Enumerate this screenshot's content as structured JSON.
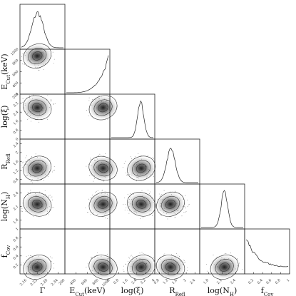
{
  "chart_data": {
    "type": "corner",
    "params": [
      {
        "key": "gamma",
        "label": "Γ",
        "range": [
          2.12,
          2.38
        ],
        "ticks": [
          2.16,
          2.22,
          2.28,
          2.34
        ],
        "peak": 2.22,
        "sigma": 0.035
      },
      {
        "key": "ecut",
        "label": "E_Cut (keV)",
        "range": [
          200,
          1000
        ],
        "ticks": [
          200,
          400,
          600,
          800,
          1000
        ],
        "peak": 1000,
        "sigma": 120
      },
      {
        "key": "logxi",
        "label": "log(ξ)",
        "range": [
          0,
          4
        ],
        "ticks": [
          0,
          0.8,
          1.6,
          2.4,
          3.2,
          4
        ],
        "peak": 2.8,
        "sigma": 0.3
      },
      {
        "key": "rrefl",
        "label": "R_Refl",
        "range": [
          0.6,
          2.6
        ],
        "ticks": [
          0.8,
          1.2,
          1.6,
          2.0,
          2.4
        ],
        "peak": 1.3,
        "sigma": 0.2
      },
      {
        "key": "lognh",
        "label": "log(N_H)",
        "range": [
          1.6,
          2.6
        ],
        "ticks": [
          1.8,
          2.1,
          2.4
        ],
        "peak": 2.15,
        "sigma": 0.08
      },
      {
        "key": "fcov",
        "label": "f_Cov",
        "range": [
          0,
          1
        ],
        "ticks": [
          0.2,
          0.4,
          0.6,
          0.8,
          1.0
        ],
        "peak": 0.05,
        "sigma": 0.25
      }
    ],
    "diagonal": "1d-posterior-histogram",
    "offdiagonal": "2d-density-with-contours",
    "axis_labels": {
      "gamma": {
        "main": "Γ",
        "sub": ""
      },
      "ecut": {
        "main": "E",
        "sub": "Cut",
        "suffix": "(keV)"
      },
      "logxi": {
        "main": "log(ξ)",
        "sub": ""
      },
      "rrefl": {
        "main": "R",
        "sub": "Refl"
      },
      "lognh": {
        "main": "log(N",
        "sub": "H",
        "suffix": ")"
      },
      "fcov": {
        "main": "f",
        "sub": "Cov"
      }
    }
  }
}
